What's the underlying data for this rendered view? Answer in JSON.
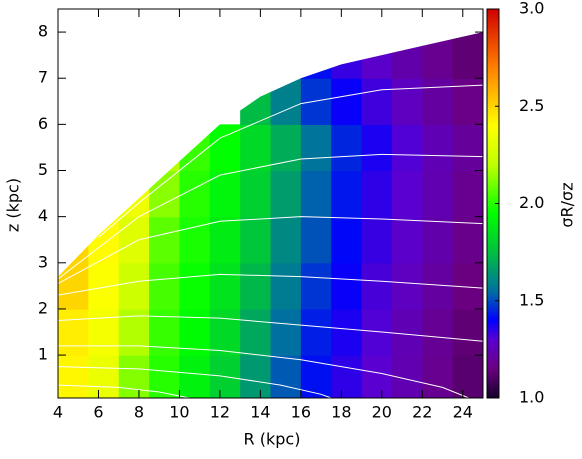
{
  "chart_data": {
    "type": "heatmap",
    "x_label": "R (kpc)",
    "y_label": "z (kpc)",
    "colorbar_label": "σR/σz",
    "xlim": [
      4,
      25
    ],
    "ylim": [
      0.07,
      8.5
    ],
    "xticks": [
      4,
      6,
      8,
      10,
      12,
      14,
      16,
      18,
      20,
      22,
      24
    ],
    "yticks": [
      1,
      2,
      3,
      4,
      5,
      6,
      7,
      8
    ],
    "clim": [
      1.0,
      3.0
    ],
    "cticks": [
      {
        "value": 1.0,
        "label": "1.0"
      },
      {
        "value": 1.5,
        "label": "1.5"
      },
      {
        "value": 2.0,
        "label": "2.0"
      },
      {
        "value": 2.5,
        "label": "2.5"
      },
      {
        "value": 3.0,
        "label": "3.0"
      }
    ],
    "colormap": {
      "stops": [
        1.0,
        1.15,
        1.3,
        1.4,
        1.55,
        1.75,
        1.95,
        2.2,
        2.4,
        2.7,
        3.0
      ],
      "colors": [
        "#14002a",
        "#6a0080",
        "#5a00d0",
        "#0000ff",
        "#0070a0",
        "#00c040",
        "#00ff00",
        "#c0ff00",
        "#ffff00",
        "#ff8000",
        "#d00000"
      ]
    },
    "xbins": [
      4,
      5.5,
      7,
      8.5,
      10,
      11.5,
      13,
      14.5,
      16,
      17.5,
      19,
      20.5,
      22,
      23.5,
      25
    ],
    "ybins": [
      0,
      1,
      2,
      3,
      4,
      5,
      6,
      7,
      8
    ],
    "values": [
      [
        2.42,
        2.34,
        2.12,
        2.0,
        1.91,
        1.8,
        1.65,
        1.52,
        1.42,
        1.35,
        1.3,
        1.24,
        1.18,
        1.12
      ],
      [
        2.44,
        2.37,
        2.18,
        2.02,
        1.94,
        1.83,
        1.69,
        1.55,
        1.44,
        1.37,
        1.31,
        1.25,
        1.19,
        1.13
      ],
      [
        2.5,
        2.39,
        2.24,
        2.04,
        1.96,
        1.86,
        1.73,
        1.58,
        1.47,
        1.39,
        1.32,
        1.27,
        1.21,
        1.15
      ],
      [
        2.5,
        2.41,
        2.3,
        2.07,
        1.98,
        1.89,
        1.77,
        1.61,
        1.51,
        1.41,
        1.34,
        1.29,
        1.23,
        1.17
      ],
      [
        null,
        2.43,
        2.35,
        2.13,
        2.0,
        1.92,
        1.8,
        1.66,
        1.53,
        1.43,
        1.35,
        1.3,
        1.24,
        1.18
      ],
      [
        null,
        null,
        null,
        2.19,
        2.02,
        1.95,
        1.83,
        1.7,
        1.56,
        1.45,
        1.37,
        1.31,
        1.25,
        1.2
      ],
      [
        null,
        null,
        null,
        null,
        null,
        null,
        1.74,
        1.59,
        1.47,
        1.39,
        1.33,
        1.27,
        1.21,
        1.16
      ],
      [
        null,
        null,
        null,
        null,
        null,
        null,
        null,
        null,
        1.42,
        1.34,
        1.29,
        1.23,
        1.18,
        1.13
      ]
    ],
    "boundary": {
      "x": [
        4,
        6,
        8,
        10,
        12,
        14,
        16,
        18,
        20,
        22,
        25
      ],
      "y": [
        2.7,
        3.6,
        4.4,
        5.2,
        6.0,
        6.6,
        7.0,
        7.3,
        7.5,
        7.7,
        8.0
      ]
    },
    "contour_color": "#ffffff",
    "contours": [
      {
        "x": [
          4,
          7,
          9,
          10.5
        ],
        "y": [
          0.35,
          0.3,
          0.2,
          0.07
        ]
      },
      {
        "x": [
          4,
          8,
          12,
          15,
          17,
          17.5
        ],
        "y": [
          0.75,
          0.7,
          0.55,
          0.35,
          0.15,
          0.07
        ]
      },
      {
        "x": [
          4,
          8,
          12,
          16,
          20,
          23,
          24.3
        ],
        "y": [
          1.2,
          1.2,
          1.1,
          0.9,
          0.6,
          0.3,
          0.07
        ]
      },
      {
        "x": [
          4,
          8,
          12,
          16,
          20,
          25
        ],
        "y": [
          1.75,
          1.85,
          1.8,
          1.65,
          1.5,
          1.3
        ]
      },
      {
        "x": [
          4,
          8,
          12,
          16,
          20,
          25
        ],
        "y": [
          2.3,
          2.6,
          2.75,
          2.7,
          2.6,
          2.45
        ]
      },
      {
        "x": [
          4,
          8,
          12,
          16,
          20,
          25
        ],
        "y": [
          2.55,
          3.5,
          3.9,
          4.0,
          3.95,
          3.85
        ]
      },
      {
        "x": [
          4,
          8,
          12,
          16,
          20,
          25
        ],
        "y": [
          2.65,
          4.0,
          4.9,
          5.25,
          5.35,
          5.3
        ]
      },
      {
        "x": [
          6,
          8,
          12,
          16,
          20,
          25
        ],
        "y": [
          3.55,
          4.3,
          5.7,
          6.45,
          6.75,
          6.85
        ]
      }
    ]
  }
}
